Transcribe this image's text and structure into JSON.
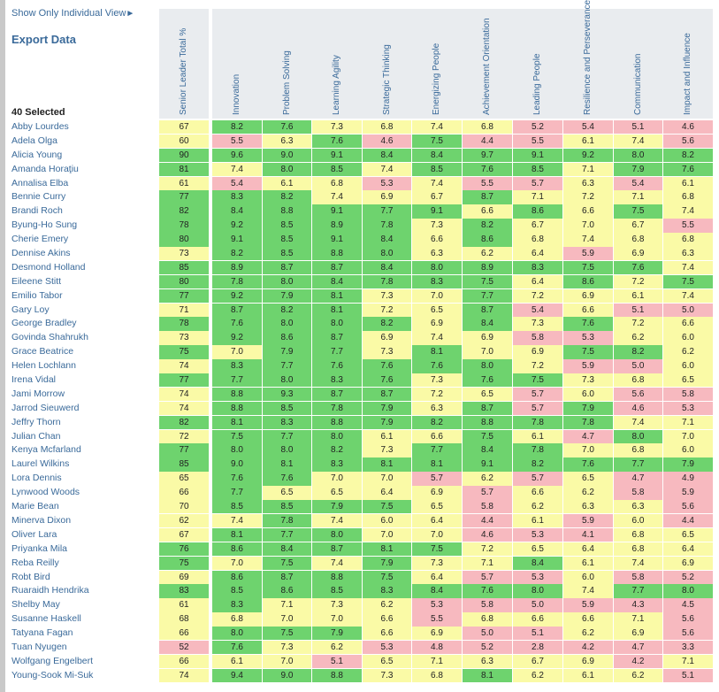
{
  "links": {
    "show_view": "Show Only Individual View",
    "show_view_arrow": "►",
    "export": "Export Data"
  },
  "selected_label": "40 Selected",
  "columns": [
    "Senior Leader Total %",
    "Innovation",
    "Problem Solving",
    "Learning Agility",
    "Strategic Thinking",
    "Energizing People",
    "Achievement Orientation",
    "Leading People",
    "Resilience and Perseverance",
    "Communication",
    "Impact and Influence"
  ],
  "colors": {
    "high": "#6ed36e",
    "mid": "#fafaa6",
    "low": "#f7b9bf",
    "header_bg": "#e9ecef",
    "link": "#3a6a9a"
  },
  "rows": [
    {
      "name": "Abby Lourdes",
      "total": "67",
      "scores": [
        "8.2",
        "7.6",
        "7.3",
        "6.8",
        "7.4",
        "6.8",
        "5.2",
        "5.4",
        "5.1",
        "4.6"
      ]
    },
    {
      "name": "Adela Olga",
      "total": "60",
      "scores": [
        "5.5",
        "6.3",
        "7.6",
        "4.6",
        "7.5",
        "4.4",
        "5.5",
        "6.1",
        "7.4",
        "5.6"
      ]
    },
    {
      "name": "Alicia Young",
      "total": "90",
      "scores": [
        "9.6",
        "9.0",
        "9.1",
        "8.4",
        "8.4",
        "9.7",
        "9.1",
        "9.2",
        "8.0",
        "8.2"
      ]
    },
    {
      "name": "Amanda Horaţiu",
      "total": "81",
      "scores": [
        "7.4",
        "8.0",
        "8.5",
        "7.4",
        "8.5",
        "7.6",
        "8.5",
        "7.1",
        "7.9",
        "7.6"
      ]
    },
    {
      "name": "Annalisa Elba",
      "total": "61",
      "scores": [
        "5.4",
        "6.1",
        "6.8",
        "5.3",
        "7.4",
        "5.5",
        "5.7",
        "6.3",
        "5.4",
        "6.1"
      ]
    },
    {
      "name": "Bennie Curry",
      "total": "77",
      "scores": [
        "8.3",
        "8.2",
        "7.4",
        "6.9",
        "6.7",
        "8.7",
        "7.1",
        "7.2",
        "7.1",
        "6.8"
      ]
    },
    {
      "name": "Brandi Roch",
      "total": "82",
      "scores": [
        "8.4",
        "8.8",
        "9.1",
        "7.7",
        "9.1",
        "6.6",
        "8.6",
        "6.6",
        "7.5",
        "7.4"
      ]
    },
    {
      "name": "Byung-Ho Sung",
      "total": "78",
      "scores": [
        "9.2",
        "8.5",
        "8.9",
        "7.8",
        "7.3",
        "8.2",
        "6.7",
        "7.0",
        "6.7",
        "5.5"
      ]
    },
    {
      "name": "Cherie Emery",
      "total": "80",
      "scores": [
        "9.1",
        "8.5",
        "9.1",
        "8.4",
        "6.6",
        "8.6",
        "6.8",
        "7.4",
        "6.8",
        "6.8"
      ]
    },
    {
      "name": "Dennise Akins",
      "total": "73",
      "scores": [
        "8.2",
        "8.5",
        "8.8",
        "8.0",
        "6.3",
        "6.2",
        "6.4",
        "5.9",
        "6.9",
        "6.3"
      ]
    },
    {
      "name": "Desmond Holland",
      "total": "85",
      "scores": [
        "8.9",
        "8.7",
        "8.7",
        "8.4",
        "8.0",
        "8.9",
        "8.3",
        "7.5",
        "7.6",
        "7.4"
      ]
    },
    {
      "name": "Eileene Stitt",
      "total": "80",
      "scores": [
        "7.8",
        "8.0",
        "8.4",
        "7.8",
        "8.3",
        "7.5",
        "6.4",
        "8.6",
        "7.2",
        "7.5"
      ]
    },
    {
      "name": "Emilio Tabor",
      "total": "77",
      "scores": [
        "9.2",
        "7.9",
        "8.1",
        "7.3",
        "7.0",
        "7.7",
        "7.2",
        "6.9",
        "6.1",
        "7.4"
      ]
    },
    {
      "name": "Gary Loy",
      "total": "71",
      "scores": [
        "8.7",
        "8.2",
        "8.1",
        "7.2",
        "6.5",
        "8.7",
        "5.4",
        "6.6",
        "5.1",
        "5.0"
      ]
    },
    {
      "name": "George Bradley",
      "total": "78",
      "scores": [
        "7.6",
        "8.0",
        "8.0",
        "8.2",
        "6.9",
        "8.4",
        "7.3",
        "7.6",
        "7.2",
        "6.6"
      ]
    },
    {
      "name": "Govinda Shahrukh",
      "total": "73",
      "scores": [
        "9.2",
        "8.6",
        "8.7",
        "6.9",
        "7.4",
        "6.9",
        "5.8",
        "5.3",
        "6.2",
        "6.0"
      ]
    },
    {
      "name": "Grace Beatrice",
      "total": "75",
      "scores": [
        "7.0",
        "7.9",
        "7.7",
        "7.3",
        "8.1",
        "7.0",
        "6.9",
        "7.5",
        "8.2",
        "6.2"
      ]
    },
    {
      "name": "Helen Lochlann",
      "total": "74",
      "scores": [
        "8.3",
        "7.7",
        "7.6",
        "7.6",
        "7.6",
        "8.0",
        "7.2",
        "5.9",
        "5.0",
        "6.0"
      ]
    },
    {
      "name": "Irena Vidal",
      "total": "77",
      "scores": [
        "7.7",
        "8.0",
        "8.3",
        "7.6",
        "7.3",
        "7.6",
        "7.5",
        "7.3",
        "6.8",
        "6.5"
      ]
    },
    {
      "name": "Jami Morrow",
      "total": "74",
      "scores": [
        "8.8",
        "9.3",
        "8.7",
        "8.7",
        "7.2",
        "6.5",
        "5.7",
        "6.0",
        "5.6",
        "5.8"
      ]
    },
    {
      "name": "Jarrod Sieuwerd",
      "total": "74",
      "scores": [
        "8.8",
        "8.5",
        "7.8",
        "7.9",
        "6.3",
        "8.7",
        "5.7",
        "7.9",
        "4.6",
        "5.3"
      ]
    },
    {
      "name": "Jeffry Thorn",
      "total": "82",
      "scores": [
        "8.1",
        "8.3",
        "8.8",
        "7.9",
        "8.2",
        "8.8",
        "7.8",
        "7.8",
        "7.4",
        "7.1"
      ]
    },
    {
      "name": "Julian Chan",
      "total": "72",
      "scores": [
        "7.5",
        "7.7",
        "8.0",
        "6.1",
        "6.6",
        "7.5",
        "6.1",
        "4.7",
        "8.0",
        "7.0"
      ]
    },
    {
      "name": "Kenya Mcfarland",
      "total": "77",
      "scores": [
        "8.0",
        "8.0",
        "8.2",
        "7.3",
        "7.7",
        "8.4",
        "7.8",
        "7.0",
        "6.8",
        "6.0"
      ]
    },
    {
      "name": "Laurel Wilkins",
      "total": "85",
      "scores": [
        "9.0",
        "8.1",
        "8.3",
        "8.1",
        "8.1",
        "9.1",
        "8.2",
        "7.6",
        "7.7",
        "7.9"
      ]
    },
    {
      "name": "Lora Dennis",
      "total": "65",
      "scores": [
        "7.6",
        "7.6",
        "7.0",
        "7.0",
        "5.7",
        "6.2",
        "5.7",
        "6.5",
        "4.7",
        "4.9"
      ]
    },
    {
      "name": "Lynwood Woods",
      "total": "66",
      "scores": [
        "7.7",
        "6.5",
        "6.5",
        "6.4",
        "6.9",
        "5.7",
        "6.6",
        "6.2",
        "5.8",
        "5.9"
      ]
    },
    {
      "name": "Marie Bean",
      "total": "70",
      "scores": [
        "8.5",
        "8.5",
        "7.9",
        "7.5",
        "6.5",
        "5.8",
        "6.2",
        "6.3",
        "6.3",
        "5.6"
      ]
    },
    {
      "name": "Minerva Dixon",
      "total": "62",
      "scores": [
        "7.4",
        "7.8",
        "7.4",
        "6.0",
        "6.4",
        "4.4",
        "6.1",
        "5.9",
        "6.0",
        "4.4"
      ]
    },
    {
      "name": "Oliver Lara",
      "total": "67",
      "scores": [
        "8.1",
        "7.7",
        "8.0",
        "7.0",
        "7.0",
        "4.6",
        "5.3",
        "4.1",
        "6.8",
        "6.5"
      ]
    },
    {
      "name": "Priyanka Mila",
      "total": "76",
      "scores": [
        "8.6",
        "8.4",
        "8.7",
        "8.1",
        "7.5",
        "7.2",
        "6.5",
        "6.4",
        "6.8",
        "6.4"
      ]
    },
    {
      "name": "Reba Reilly",
      "total": "75",
      "scores": [
        "7.0",
        "7.5",
        "7.4",
        "7.9",
        "7.3",
        "7.1",
        "8.4",
        "6.1",
        "7.4",
        "6.9"
      ]
    },
    {
      "name": "Robt Bird",
      "total": "69",
      "scores": [
        "8.6",
        "8.7",
        "8.8",
        "7.5",
        "6.4",
        "5.7",
        "5.3",
        "6.0",
        "5.8",
        "5.2"
      ]
    },
    {
      "name": "Ruaraidh Hendrika",
      "total": "83",
      "scores": [
        "8.5",
        "8.6",
        "8.5",
        "8.3",
        "8.4",
        "7.6",
        "8.0",
        "7.4",
        "7.7",
        "8.0"
      ]
    },
    {
      "name": "Shelby May",
      "total": "61",
      "scores": [
        "8.3",
        "7.1",
        "7.3",
        "6.2",
        "5.3",
        "5.8",
        "5.0",
        "5.9",
        "4.3",
        "4.5"
      ]
    },
    {
      "name": "Susanne Haskell",
      "total": "68",
      "scores": [
        "6.8",
        "7.0",
        "7.0",
        "6.6",
        "5.5",
        "6.8",
        "6.6",
        "6.6",
        "7.1",
        "5.6"
      ]
    },
    {
      "name": "Tatyana Fagan",
      "total": "66",
      "scores": [
        "8.0",
        "7.5",
        "7.9",
        "6.6",
        "6.9",
        "5.0",
        "5.1",
        "6.2",
        "6.9",
        "5.6"
      ]
    },
    {
      "name": "Tuan Nyugen",
      "total": "52",
      "scores": [
        "7.6",
        "7.3",
        "6.2",
        "5.3",
        "4.8",
        "5.2",
        "2.8",
        "4.2",
        "4.7",
        "3.3"
      ]
    },
    {
      "name": "Wolfgang Engelbert",
      "total": "66",
      "scores": [
        "6.1",
        "7.0",
        "5.1",
        "6.5",
        "7.1",
        "6.3",
        "6.7",
        "6.9",
        "4.2",
        "7.1"
      ]
    },
    {
      "name": "Young-Sook Mi-Suk",
      "total": "74",
      "scores": [
        "9.4",
        "9.0",
        "8.8",
        "7.3",
        "6.8",
        "8.1",
        "6.2",
        "6.1",
        "6.2",
        "5.1"
      ]
    }
  ]
}
